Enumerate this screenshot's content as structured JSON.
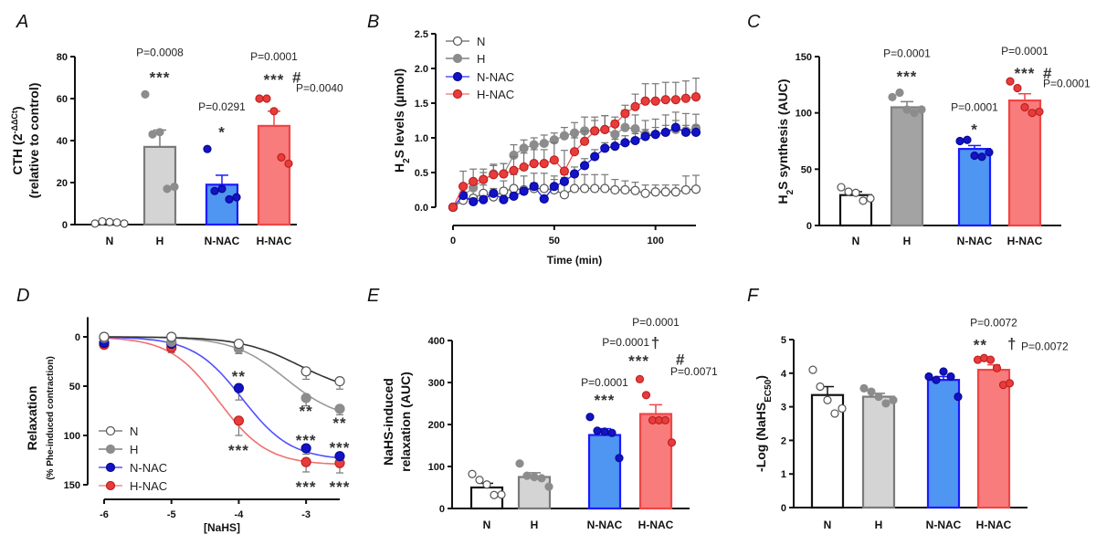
{
  "panels": [
    "A",
    "B",
    "C",
    "D",
    "E",
    "F"
  ],
  "groups": [
    "N",
    "H",
    "N-NAC",
    "H-NAC"
  ],
  "colors": {
    "N": {
      "fill": "#ffffff",
      "stroke": "#111111",
      "point": "#ffffff",
      "pointStroke": "#555555"
    },
    "H": {
      "fill": "#d4d4d4",
      "stroke": "#7a7a7a",
      "point": "#8c8c8c",
      "pointStroke": "#8c8c8c"
    },
    "H_dark": {
      "fill": "#a3a3a3",
      "stroke": "#808080",
      "point": "#8c8c8c",
      "pointStroke": "#8c8c8c"
    },
    "N-NAC": {
      "fill": "#4f95f2",
      "stroke": "#1a1aff",
      "point": "#1212c8",
      "pointStroke": "#0a0a90"
    },
    "H-NAC": {
      "fill": "#f97c7c",
      "stroke": "#f04545",
      "point": "#e83c3c",
      "pointStroke": "#c02020"
    }
  },
  "chart_data": [
    {
      "panel": "A",
      "type": "bar",
      "ylabel_lines": [
        [
          {
            "t": "CTH (2"
          },
          {
            "t": "-ΔΔCt",
            "sup": true
          },
          {
            "t": ")"
          }
        ],
        [
          {
            "t": "(relative to control)"
          }
        ]
      ],
      "ylim": [
        0,
        80
      ],
      "yticks": [
        0,
        20,
        40,
        60,
        80
      ],
      "categories": [
        "N",
        "H",
        "N-NAC",
        "H-NAC"
      ],
      "means": [
        1,
        37,
        19,
        47
      ],
      "sem": [
        0.3,
        8,
        4.5,
        7
      ],
      "points": [
        [
          0.5,
          1.5,
          1.2,
          1,
          0.5
        ],
        [
          62,
          43,
          44,
          17,
          18
        ],
        [
          36,
          16,
          17,
          12,
          13
        ],
        [
          60,
          60,
          54,
          32,
          29
        ]
      ],
      "annotations": [
        {
          "group": "H",
          "text": "P=0.0008",
          "y": 82,
          "side": "center"
        },
        {
          "group": "H",
          "text": "***",
          "y": 71,
          "side": "center",
          "stars": true
        },
        {
          "group": "N-NAC",
          "text": "P=0.0291",
          "y": 56,
          "side": "center"
        },
        {
          "group": "N-NAC",
          "text": "*",
          "y": 45,
          "side": "center",
          "stars": true
        },
        {
          "group": "H-NAC",
          "text": "P=0.0001",
          "y": 80,
          "side": "center"
        },
        {
          "group": "H-NAC",
          "text": "***",
          "y": 70,
          "side": "center",
          "stars": true
        },
        {
          "group": "H-NAC",
          "text": "#",
          "y": 71,
          "side": "right",
          "stars": true
        },
        {
          "group": "H-NAC",
          "text": "P=0.0040",
          "y": 65,
          "side": "far-right"
        }
      ]
    },
    {
      "panel": "B",
      "type": "line",
      "ylabel_lines": [
        [
          {
            "t": "H"
          },
          {
            "t": "2",
            "sub": true
          },
          {
            "t": "S levels (µmol)"
          }
        ]
      ],
      "xlabel": "Time (min)",
      "ylim": [
        0,
        2.5
      ],
      "yticks": [
        0.0,
        0.5,
        1.0,
        1.5,
        2.0,
        2.5
      ],
      "ytick_labels": [
        "0.0",
        "0.5",
        "1.0",
        "1.5",
        "2.0",
        "2.5"
      ],
      "xlim": [
        0,
        120
      ],
      "xticks": [
        0,
        50,
        100
      ],
      "x": [
        0,
        5,
        10,
        15,
        20,
        25,
        30,
        35,
        40,
        45,
        50,
        55,
        60,
        65,
        70,
        75,
        80,
        85,
        90,
        95,
        100,
        105,
        110,
        115,
        120
      ],
      "legend": "top-left",
      "series": [
        {
          "name": "N",
          "values": [
            0,
            0.1,
            0.13,
            0.2,
            0.15,
            0.23,
            0.27,
            0.25,
            0.27,
            0.27,
            0.25,
            0.18,
            0.27,
            0.27,
            0.27,
            0.27,
            0.25,
            0.25,
            0.24,
            0.2,
            0.22,
            0.22,
            0.22,
            0.25,
            0.26
          ],
          "sem": [
            0,
            0.1,
            0.15,
            0.12,
            0.12,
            0.15,
            0.2,
            0.2,
            0.22,
            0.22,
            0.2,
            0.25,
            0.22,
            0.2,
            0.2,
            0.2,
            0.15,
            0.13,
            0.12,
            0.12,
            0.1,
            0.1,
            0.1,
            0.2,
            0.2
          ]
        },
        {
          "name": "H",
          "values": [
            0,
            0.17,
            0.28,
            0.4,
            0.48,
            0.48,
            0.75,
            0.85,
            0.9,
            0.92,
            0.97,
            1.03,
            1.07,
            1.1,
            1.1,
            1.12,
            1.05,
            1.15,
            1.13,
            1.05,
            1.05,
            1.08,
            1.12,
            1.1,
            1.14
          ],
          "sem": [
            0,
            0.1,
            0.12,
            0.1,
            0.12,
            0.15,
            0.15,
            0.12,
            0.1,
            0.12,
            0.1,
            0.12,
            0.15,
            0.2,
            0.15,
            0.2,
            0.2,
            0.25,
            0.2,
            0.2,
            0.22,
            0.25,
            0.25,
            0.25,
            0.2
          ]
        },
        {
          "name": "N-NAC",
          "values": [
            0,
            0.17,
            0.08,
            0.11,
            0.2,
            0.11,
            0.16,
            0.23,
            0.3,
            0.12,
            0.3,
            0.37,
            0.48,
            0.6,
            0.73,
            0.85,
            0.88,
            0.93,
            0.96,
            1.02,
            1.05,
            1.08,
            1.15,
            1.08,
            1.08
          ],
          "sem": [
            0,
            0.05,
            0.05,
            0.05,
            0.05,
            0.05,
            0.05,
            0.05,
            0.05,
            0.05,
            0.1,
            0.1,
            0.1,
            0.1,
            0.1,
            0.08,
            0.1,
            0.1,
            0.1,
            0.1,
            0.1,
            0.1,
            0.1,
            0.1,
            0.1
          ]
        },
        {
          "name": "H-NAC",
          "values": [
            0,
            0.3,
            0.37,
            0.4,
            0.47,
            0.48,
            0.53,
            0.58,
            0.63,
            0.63,
            0.68,
            0.52,
            0.8,
            0.95,
            1.1,
            1.12,
            1.2,
            1.35,
            1.45,
            1.53,
            1.53,
            1.55,
            1.55,
            1.57,
            1.59
          ],
          "sem": [
            0,
            0.22,
            0.18,
            0.15,
            0.15,
            0.15,
            0.2,
            0.2,
            0.2,
            0.2,
            0.25,
            0.3,
            0.2,
            0.15,
            0.2,
            0.2,
            0.1,
            0.12,
            0.18,
            0.25,
            0.25,
            0.25,
            0.25,
            0.25,
            0.27
          ]
        }
      ]
    },
    {
      "panel": "C",
      "type": "bar",
      "ylabel_lines": [
        [
          {
            "t": "H"
          },
          {
            "t": "2",
            "sub": true
          },
          {
            "t": "S synthesis (AUC)"
          }
        ]
      ],
      "ylim": [
        0,
        150
      ],
      "yticks": [
        0,
        50,
        100,
        150
      ],
      "categories": [
        "N",
        "H",
        "N-NAC",
        "H-NAC"
      ],
      "means": [
        27,
        105,
        68,
        111
      ],
      "sem": [
        3,
        5,
        3,
        6
      ],
      "points": [
        [
          34,
          30,
          29,
          22,
          24
        ],
        [
          114,
          118,
          103,
          100,
          103
        ],
        [
          75,
          76,
          62,
          61,
          65
        ],
        [
          128,
          122,
          105,
          100,
          101
        ]
      ],
      "annotations": [
        {
          "group": "H",
          "text": "P=0.0001",
          "y": 153,
          "side": "center"
        },
        {
          "group": "H",
          "text": "***",
          "y": 134,
          "side": "center",
          "stars": true
        },
        {
          "group": "N-NAC",
          "text": "P=0.0001",
          "y": 105,
          "side": "center"
        },
        {
          "group": "N-NAC",
          "text": "*",
          "y": 87,
          "side": "center",
          "stars": true
        },
        {
          "group": "H-NAC",
          "text": "P=0.0001",
          "y": 155,
          "side": "center"
        },
        {
          "group": "H-NAC",
          "text": "***",
          "y": 137,
          "side": "center",
          "stars": true
        },
        {
          "group": "H-NAC",
          "text": "#",
          "y": 137,
          "side": "right",
          "stars": true
        },
        {
          "group": "H-NAC",
          "text": "P=0.0001",
          "y": 126,
          "side": "far-right"
        }
      ]
    },
    {
      "panel": "D",
      "type": "line",
      "ylabel_lines": [
        [
          {
            "t": "Relaxation"
          }
        ],
        [
          {
            "t": "(% Phe-induced contraction)",
            "small": true
          }
        ]
      ],
      "xlabel": "[NaHS]",
      "ylim": [
        -20,
        150
      ],
      "y_inverted": true,
      "yticks": [
        0,
        50,
        100,
        150
      ],
      "xlim": [
        -6,
        -2.5
      ],
      "xticks": [
        -6,
        -5,
        -4,
        -3
      ],
      "x": [
        -6,
        -5,
        -4,
        -3,
        -2.5
      ],
      "legend": "bottom-left",
      "series": [
        {
          "name": "N",
          "values": [
            0,
            0,
            7,
            35,
            45
          ],
          "sem": [
            0,
            0,
            3,
            8,
            8
          ],
          "fit": {
            "top": 58,
            "logEC50": -3.1,
            "hill": 1
          }
        },
        {
          "name": "H",
          "values": [
            1,
            5,
            12,
            62,
            73
          ],
          "sem": [
            1,
            3,
            5,
            8,
            6
          ],
          "fit": {
            "top": 85,
            "logEC50": -3.3,
            "hill": 1.1
          }
        },
        {
          "name": "N-NAC",
          "values": [
            6,
            7,
            52,
            113,
            121
          ],
          "sem": [
            2,
            3,
            12,
            6,
            4
          ],
          "fit": {
            "top": 125,
            "logEC50": -3.95,
            "hill": 1.2
          }
        },
        {
          "name": "H-NAC",
          "values": [
            8,
            11,
            85,
            127,
            128
          ],
          "sem": [
            3,
            5,
            15,
            10,
            10
          ],
          "fit": {
            "top": 130,
            "logEC50": -4.3,
            "hill": 1.2
          }
        }
      ],
      "annotations": [
        {
          "x": -4,
          "y": 38,
          "text": "**"
        },
        {
          "x": -4,
          "y": 113,
          "text": "***"
        },
        {
          "x": -3,
          "y": 73,
          "text": "**"
        },
        {
          "x": -2.5,
          "y": 85,
          "text": "**"
        },
        {
          "x": -3,
          "y": 103,
          "text": "***"
        },
        {
          "x": -2.5,
          "y": 110,
          "text": "***"
        },
        {
          "x": -3,
          "y": 150,
          "text": "***"
        },
        {
          "x": -2.5,
          "y": 150,
          "text": "***"
        }
      ]
    },
    {
      "panel": "E",
      "type": "bar",
      "ylabel_lines": [
        [
          {
            "t": "NaHS-induced"
          }
        ],
        [
          {
            "t": "relaxation (AUC)"
          }
        ]
      ],
      "ylim": [
        0,
        400
      ],
      "yticks": [
        0,
        100,
        200,
        300,
        400
      ],
      "categories": [
        "N",
        "H",
        "N-NAC",
        "H-NAC"
      ],
      "means": [
        50,
        75,
        175,
        225
      ],
      "sem": [
        10,
        10,
        15,
        22
      ],
      "points": [
        [
          82,
          68,
          57,
          32,
          33
        ],
        [
          107,
          78,
          75,
          72,
          52
        ],
        [
          218,
          185,
          183,
          180,
          120
        ],
        [
          308,
          270,
          210,
          210,
          210,
          157
        ]
      ],
      "annotations": [
        {
          "group": "N-NAC",
          "text": "P=0.0001",
          "y": 300,
          "side": "center"
        },
        {
          "group": "N-NAC",
          "text": "***",
          "y": 263,
          "side": "center",
          "stars": true
        },
        {
          "group": "H-NAC",
          "text": "P=0.0001",
          "y": 443,
          "side": "center"
        },
        {
          "group": "H-NAC",
          "text": "†",
          "y": 400,
          "side": "center",
          "stars": true
        },
        {
          "group": "H-NAC",
          "text": "P=0.0001",
          "y": 396,
          "side": "left"
        },
        {
          "group": "H-NAC",
          "text": "***",
          "y": 357,
          "side": "left",
          "stars": true
        },
        {
          "group": "H-NAC",
          "text": "#",
          "y": 360,
          "side": "far-right",
          "stars": true
        },
        {
          "group": "H-NAC",
          "text": "P=0.0071",
          "y": 326,
          "side": "right"
        }
      ]
    },
    {
      "panel": "F",
      "type": "bar",
      "ylabel_lines": [
        [
          {
            "t": "-Log (NaHS"
          },
          {
            "t": "EC50",
            "sub": true
          },
          {
            "t": ")"
          }
        ]
      ],
      "ylim": [
        0,
        5
      ],
      "yticks": [
        0,
        1,
        2,
        3,
        4,
        5
      ],
      "categories": [
        "N",
        "H",
        "N-NAC",
        "H-NAC"
      ],
      "means": [
        3.35,
        3.3,
        3.8,
        4.1
      ],
      "sem": [
        0.25,
        0.1,
        0.1,
        0.15
      ],
      "points": [
        [
          4.1,
          3.6,
          3.2,
          2.8,
          2.95
        ],
        [
          3.55,
          3.45,
          3.3,
          3.1,
          3.2
        ],
        [
          3.9,
          3.8,
          4.05,
          3.9,
          3.3
        ],
        [
          4.4,
          4.45,
          4.4,
          4.15,
          3.65,
          3.7
        ]
      ],
      "annotations": [
        {
          "group": "H-NAC",
          "text": "P=0.0072",
          "y": 5.5,
          "side": "center"
        },
        {
          "group": "H-NAC",
          "text": "**",
          "y": 4.9,
          "side": "left",
          "stars": true
        },
        {
          "group": "H-NAC",
          "text": "†",
          "y": 4.95,
          "side": "right",
          "stars": true
        },
        {
          "group": "H-NAC",
          "text": "P=0.0072",
          "y": 4.8,
          "side": "far-right"
        }
      ]
    }
  ]
}
